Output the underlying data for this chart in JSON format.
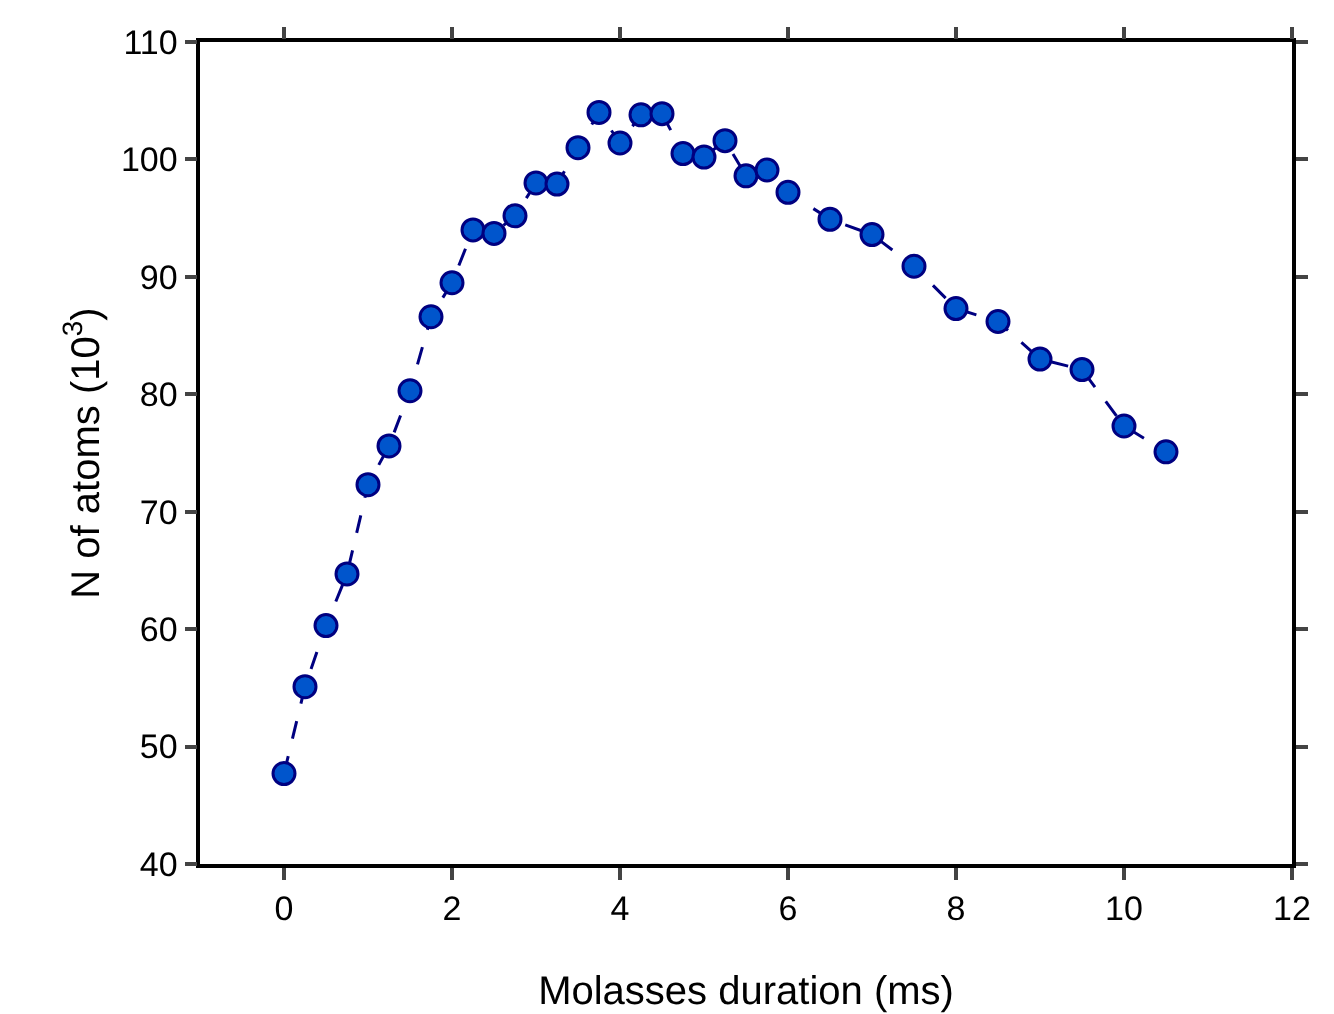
{
  "chart_data": {
    "type": "line",
    "xlabel": "Molasses duration (ms)",
    "ylabel": "N of atoms (10$^{3}$)",
    "x": [
      0,
      0.25,
      0.5,
      0.75,
      1,
      1.25,
      1.5,
      1.75,
      2,
      2.25,
      2.5,
      2.75,
      3,
      3.25,
      3.5,
      3.75,
      4,
      4.25,
      4.5,
      4.75,
      5,
      5.25,
      5.5,
      5.75,
      6,
      6.5,
      7,
      7.5,
      8,
      8.5,
      9,
      9.5,
      10,
      10.5
    ],
    "series": [
      {
        "color": "#0055cc",
        "values": [
          47.7,
          55.1,
          60.3,
          64.7,
          72.3,
          75.6,
          80.3,
          86.6,
          89.5,
          94.0,
          93.7,
          95.2,
          98.0,
          97.9,
          101.0,
          104.0,
          101.4,
          103.8,
          103.9,
          100.5,
          100.2,
          101.6,
          98.6,
          99.1,
          97.2,
          94.9,
          93.6,
          90.9,
          87.3,
          86.2,
          83.0,
          82.1,
          77.3,
          75.1
        ]
      }
    ],
    "xlim": [
      -1,
      12
    ],
    "xticks": [
      0,
      2,
      4,
      6,
      8,
      10,
      12
    ],
    "ylim": [
      40,
      110
    ],
    "yticks": [
      40,
      50,
      60,
      70,
      80,
      90,
      100,
      110
    ],
    "grid": false,
    "marker": "circle",
    "line_style": "dashed"
  }
}
